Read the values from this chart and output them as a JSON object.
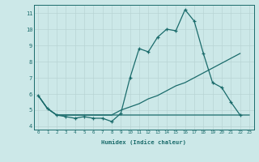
{
  "background_color": "#cce8e8",
  "grid_color": "#b8d4d4",
  "line_color": "#1a6b6b",
  "xlabel": "Humidex (Indice chaleur)",
  "xlim": [
    -0.5,
    23.5
  ],
  "ylim": [
    3.8,
    11.5
  ],
  "yticks": [
    4,
    5,
    6,
    7,
    8,
    9,
    10,
    11
  ],
  "xticks": [
    0,
    1,
    2,
    3,
    4,
    5,
    6,
    7,
    8,
    9,
    10,
    11,
    12,
    13,
    14,
    15,
    16,
    17,
    18,
    19,
    20,
    21,
    22,
    23
  ],
  "series1_x": [
    0,
    1,
    2,
    3,
    4,
    5,
    6,
    7,
    8,
    9,
    10,
    11,
    12,
    13,
    14,
    15,
    16,
    17,
    18,
    19,
    20,
    21,
    22
  ],
  "series1_y": [
    5.9,
    5.1,
    4.7,
    4.6,
    4.5,
    4.6,
    4.5,
    4.5,
    4.3,
    4.8,
    7.0,
    8.8,
    8.6,
    9.5,
    10.0,
    9.9,
    11.2,
    10.5,
    8.5,
    6.7,
    6.4,
    5.5,
    4.7
  ],
  "series2_x": [
    0,
    1,
    2,
    3,
    4,
    5,
    6,
    7,
    8,
    9,
    10,
    11,
    12,
    13,
    14,
    15,
    16,
    17,
    18,
    19,
    20,
    21,
    22
  ],
  "series2_y": [
    5.9,
    5.1,
    4.7,
    4.7,
    4.7,
    4.7,
    4.7,
    4.7,
    4.7,
    5.0,
    5.2,
    5.4,
    5.7,
    5.9,
    6.2,
    6.5,
    6.7,
    7.0,
    7.3,
    7.6,
    7.9,
    8.2,
    8.5
  ],
  "series3_x": [
    0,
    1,
    2,
    3,
    4,
    5,
    6,
    7,
    8,
    9,
    10,
    11,
    12,
    13,
    14,
    15,
    16,
    17,
    18,
    19,
    20,
    21,
    22,
    23
  ],
  "series3_y": [
    5.9,
    5.1,
    4.7,
    4.7,
    4.7,
    4.7,
    4.7,
    4.7,
    4.7,
    4.7,
    4.7,
    4.7,
    4.7,
    4.7,
    4.7,
    4.7,
    4.7,
    4.7,
    4.7,
    4.7,
    4.7,
    4.7,
    4.7,
    4.7
  ]
}
